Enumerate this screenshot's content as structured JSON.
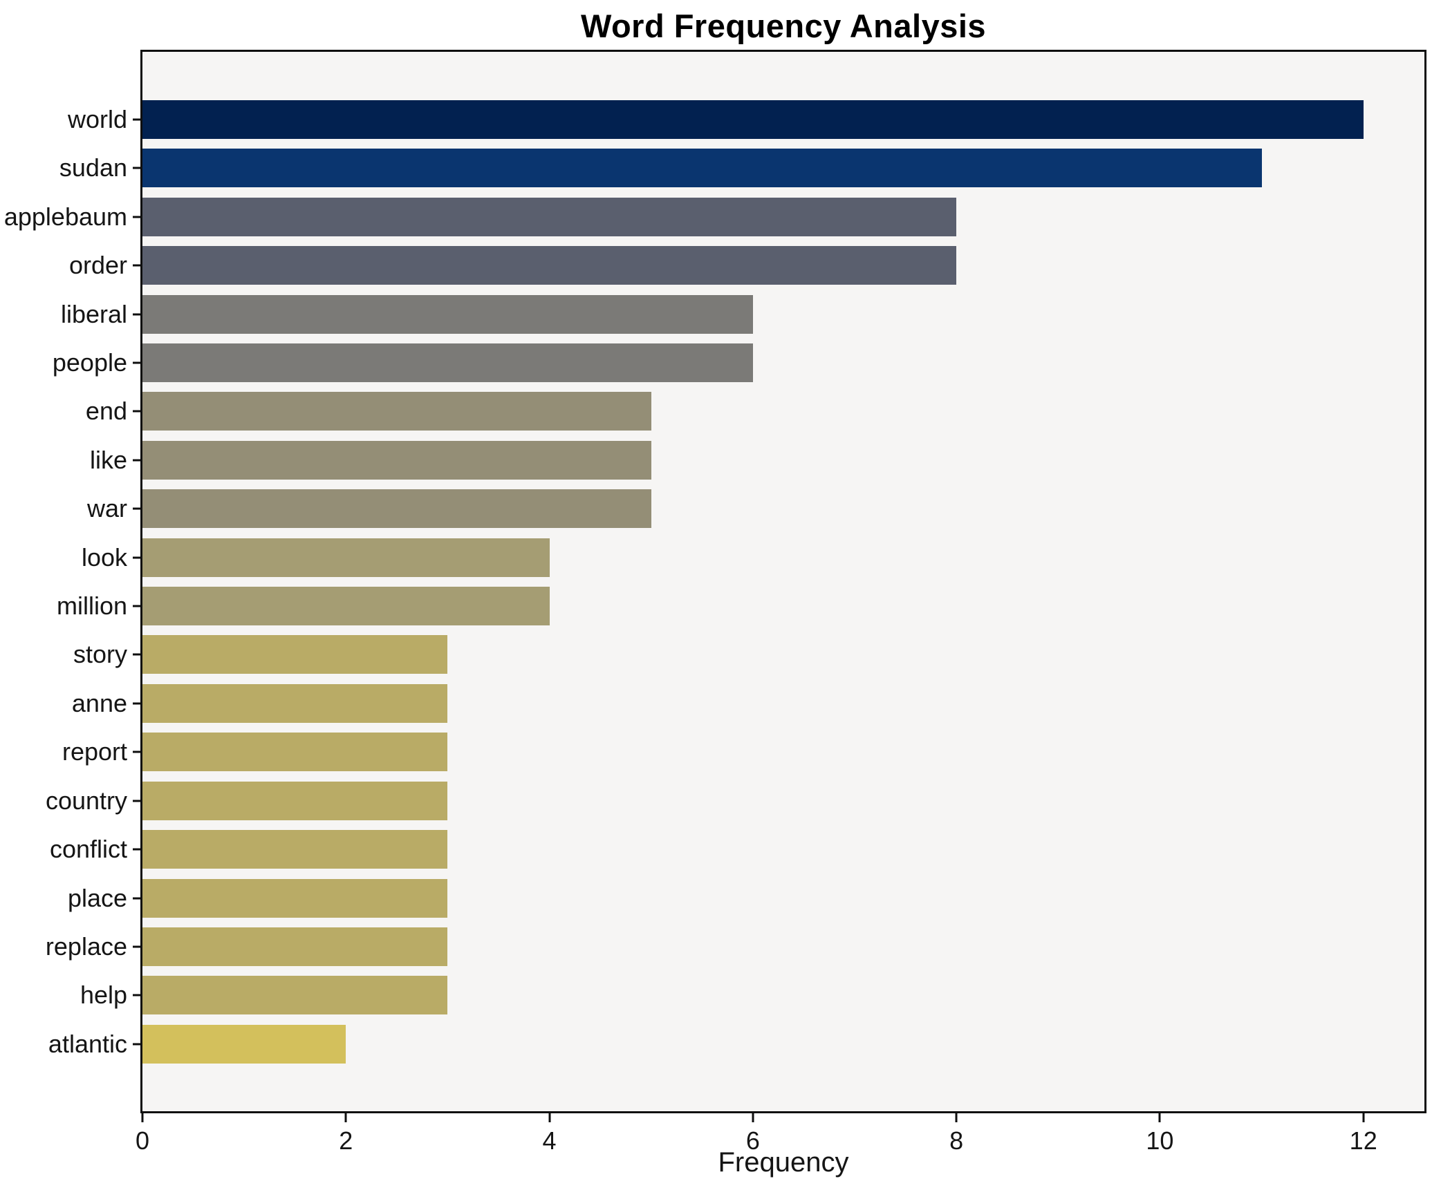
{
  "title": "Word Frequency Analysis",
  "chart_data": {
    "type": "bar",
    "orientation": "horizontal",
    "title": "Word Frequency Analysis",
    "xlabel": "Frequency",
    "ylabel": "",
    "categories": [
      "world",
      "sudan",
      "applebaum",
      "order",
      "liberal",
      "people",
      "end",
      "like",
      "war",
      "look",
      "million",
      "story",
      "anne",
      "report",
      "country",
      "conflict",
      "place",
      "replace",
      "help",
      "atlantic"
    ],
    "values": [
      12,
      11,
      8,
      8,
      6,
      6,
      5,
      5,
      5,
      4,
      4,
      3,
      3,
      3,
      3,
      3,
      3,
      3,
      3,
      2
    ],
    "bar_colors": [
      "#022150",
      "#0a356f",
      "#5a5f6e",
      "#5a5f6e",
      "#7b7a77",
      "#7b7a77",
      "#948e76",
      "#948e76",
      "#948e76",
      "#a59d73",
      "#a59d73",
      "#b9ab66",
      "#b9ab66",
      "#b9ab66",
      "#b9ab66",
      "#b9ab66",
      "#b9ab66",
      "#b9ab66",
      "#b9ab66",
      "#d3c05c"
    ],
    "xlim": [
      0,
      12.6
    ],
    "xticks": [
      0,
      2,
      4,
      6,
      8,
      10,
      12
    ],
    "grid": false,
    "legend": null,
    "colors": {
      "plot_background": "#f6f5f4",
      "figure_background": "#ffffff",
      "spine": "#0f0f0f",
      "text": "#151515"
    }
  }
}
